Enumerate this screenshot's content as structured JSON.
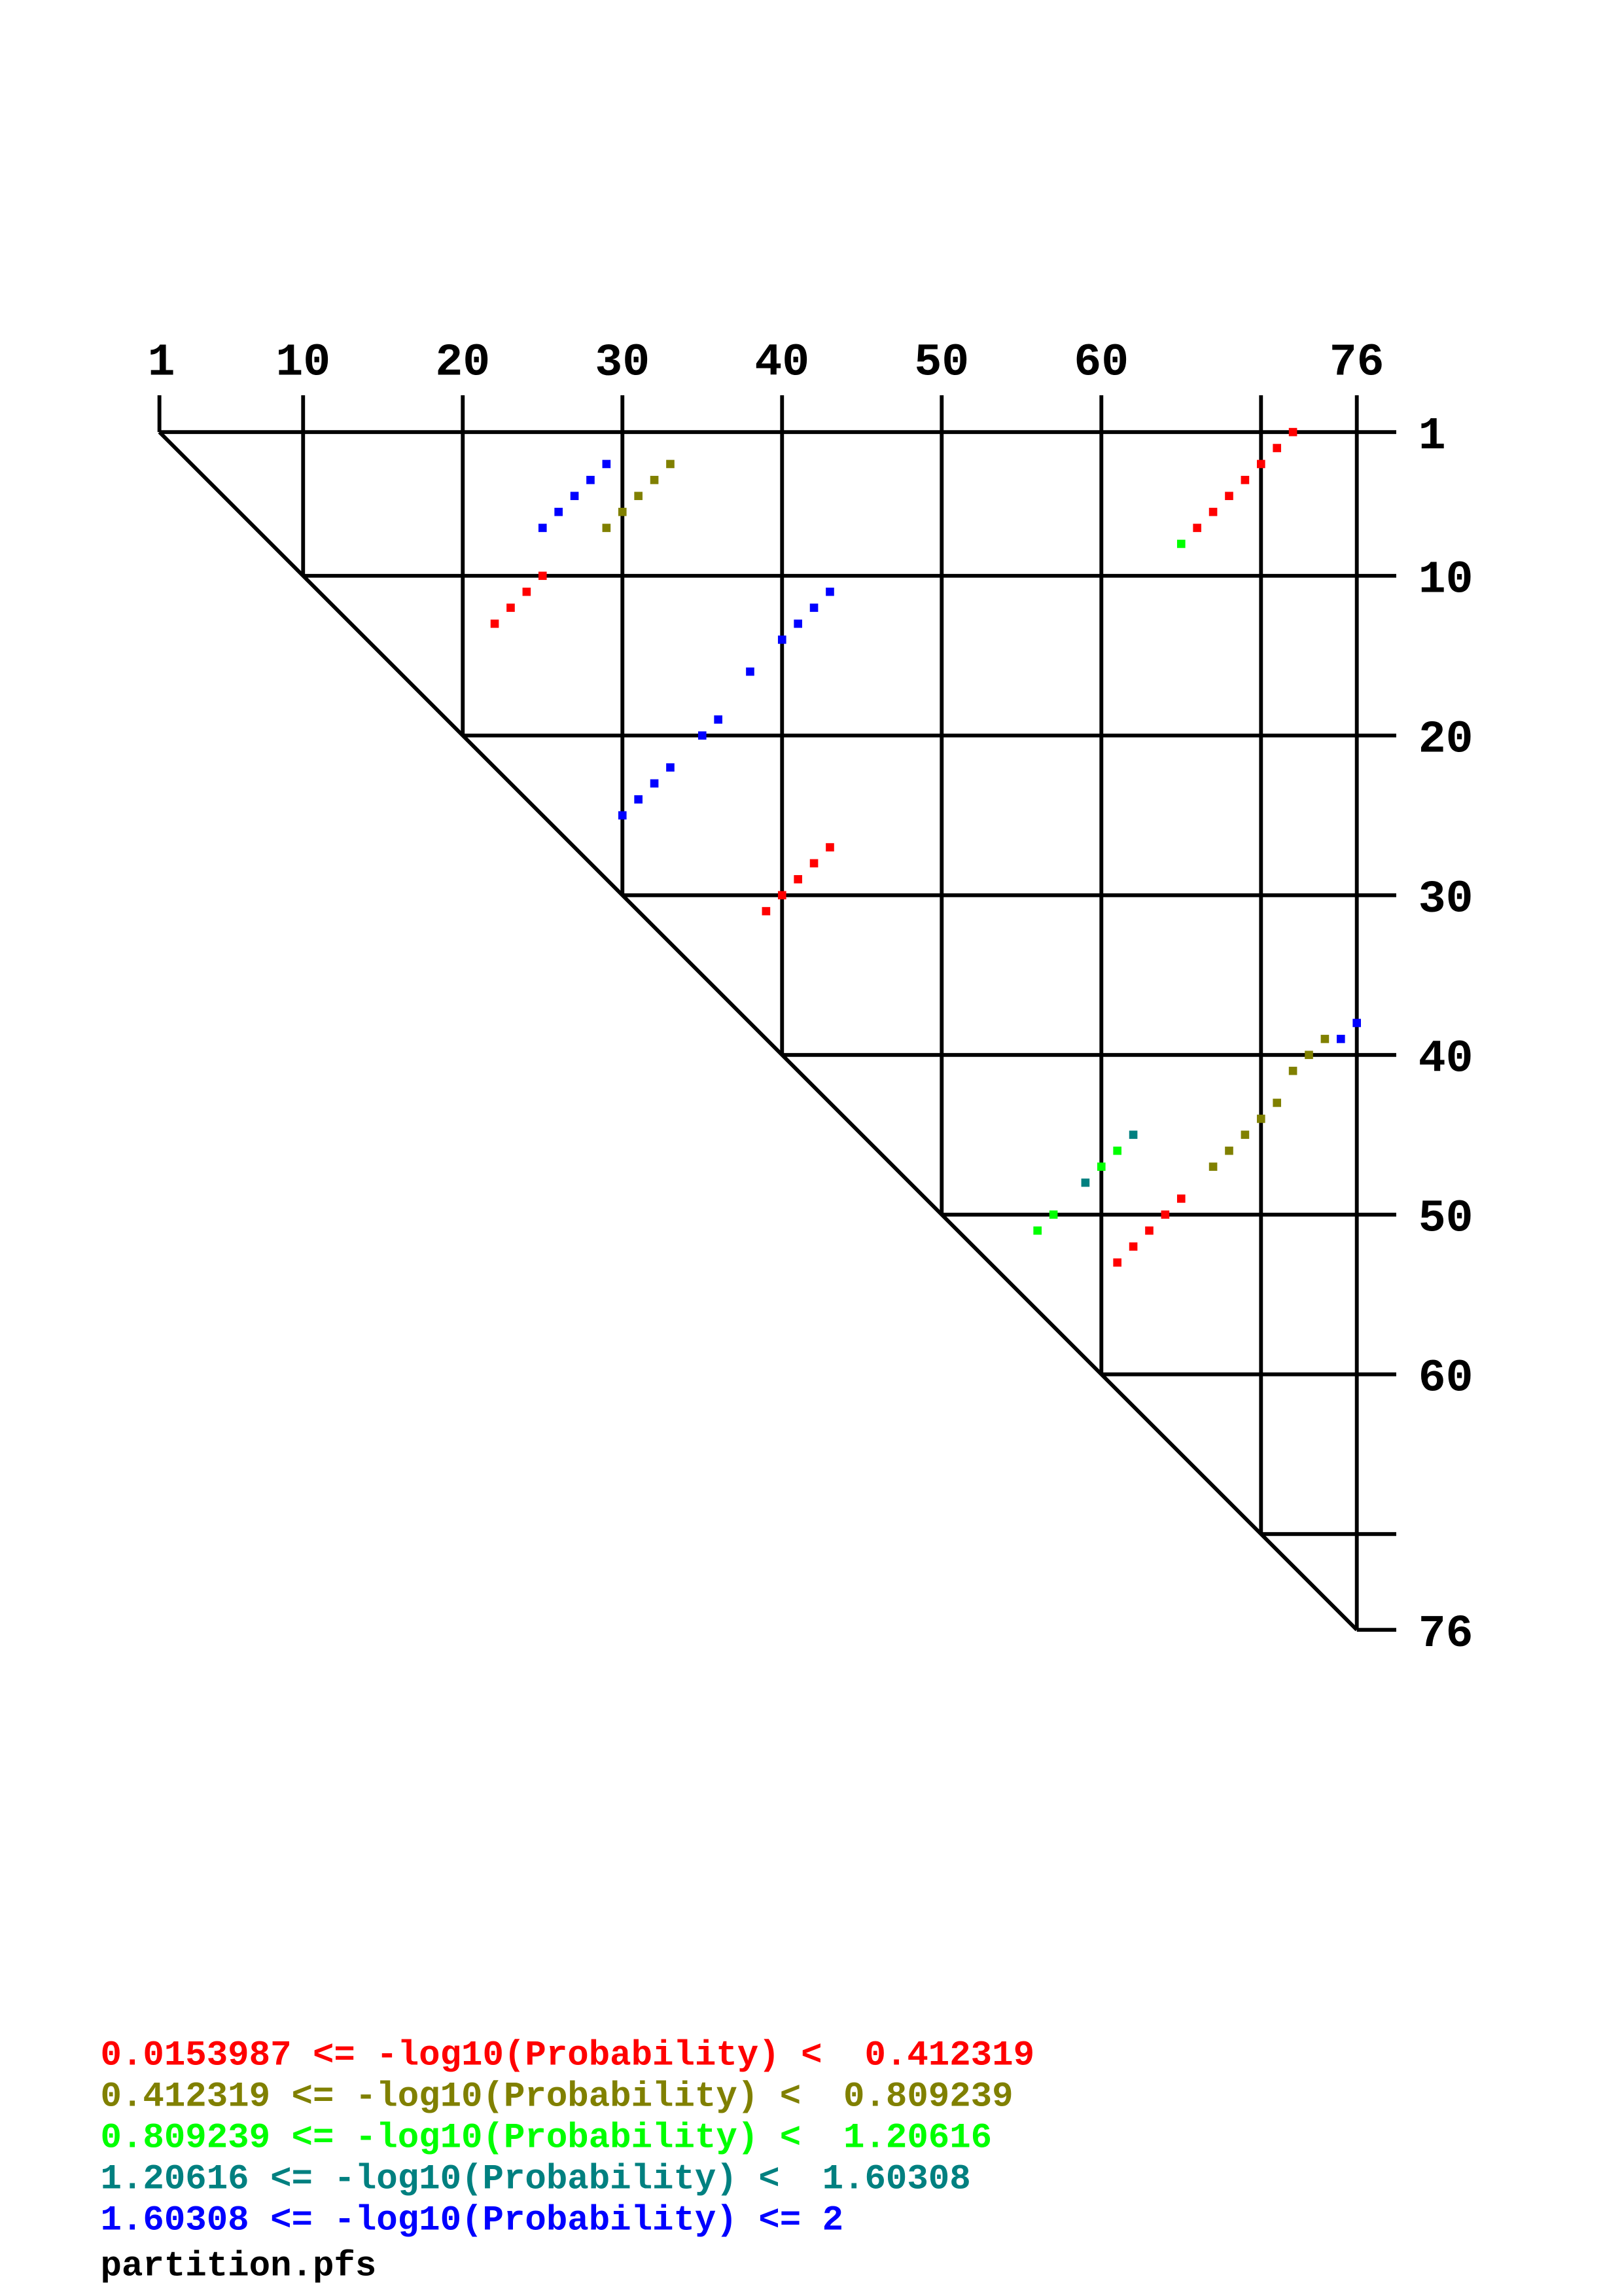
{
  "chart_data": {
    "type": "heatmap",
    "description_kind": "triangular base-pair probability dot plot",
    "sequence_range": [
      1,
      76
    ],
    "top_tick_labels": [
      "1",
      "10",
      "20",
      "30",
      "40",
      "50",
      "60",
      "76"
    ],
    "right_tick_labels": [
      "1",
      "10",
      "20",
      "30",
      "40",
      "50",
      "60",
      "76"
    ],
    "grid_positions": [
      1,
      10,
      20,
      30,
      40,
      50,
      60,
      70,
      76
    ],
    "bins": [
      {
        "label": "0.0153987 <= -log10(Probability) <  0.412319",
        "color": "#ff0000"
      },
      {
        "label": "0.412319 <= -log10(Probability) <  0.809239",
        "color": "#808000"
      },
      {
        "label": "0.809239 <= -log10(Probability) <  1.20616",
        "color": "#00ff00"
      },
      {
        "label": "1.20616 <= -log10(Probability) <  1.60308",
        "color": "#008080"
      },
      {
        "label": "1.60308 <= -log10(Probability) <= 2",
        "color": "#0000ff"
      }
    ],
    "pairs_i_j_bin": [
      [
        1,
        72,
        0
      ],
      [
        2,
        71,
        0
      ],
      [
        3,
        70,
        0
      ],
      [
        4,
        69,
        0
      ],
      [
        5,
        68,
        0
      ],
      [
        6,
        67,
        0
      ],
      [
        7,
        66,
        0
      ],
      [
        8,
        65,
        2
      ],
      [
        3,
        29,
        4
      ],
      [
        4,
        28,
        4
      ],
      [
        5,
        27,
        4
      ],
      [
        6,
        26,
        4
      ],
      [
        7,
        25,
        4
      ],
      [
        3,
        33,
        1
      ],
      [
        4,
        32,
        1
      ],
      [
        5,
        31,
        1
      ],
      [
        6,
        30,
        1
      ],
      [
        7,
        29,
        1
      ],
      [
        10,
        25,
        0
      ],
      [
        11,
        24,
        0
      ],
      [
        12,
        23,
        0
      ],
      [
        13,
        22,
        0
      ],
      [
        11,
        43,
        4
      ],
      [
        12,
        42,
        4
      ],
      [
        13,
        41,
        4
      ],
      [
        14,
        40,
        4
      ],
      [
        16,
        38,
        4
      ],
      [
        19,
        36,
        4
      ],
      [
        20,
        35,
        4
      ],
      [
        22,
        33,
        4
      ],
      [
        23,
        32,
        4
      ],
      [
        24,
        31,
        4
      ],
      [
        25,
        30,
        4
      ],
      [
        27,
        43,
        0
      ],
      [
        28,
        42,
        0
      ],
      [
        29,
        41,
        0
      ],
      [
        30,
        40,
        0
      ],
      [
        31,
        39,
        0
      ],
      [
        38,
        76,
        4
      ],
      [
        39,
        75,
        4
      ],
      [
        39,
        74,
        1
      ],
      [
        40,
        73,
        1
      ],
      [
        41,
        72,
        1
      ],
      [
        43,
        71,
        1
      ],
      [
        44,
        70,
        1
      ],
      [
        45,
        69,
        1
      ],
      [
        46,
        68,
        1
      ],
      [
        47,
        67,
        1
      ],
      [
        45,
        62,
        3
      ],
      [
        48,
        59,
        3
      ],
      [
        46,
        61,
        2
      ],
      [
        47,
        60,
        2
      ],
      [
        50,
        57,
        2
      ],
      [
        51,
        56,
        2
      ],
      [
        49,
        65,
        0
      ],
      [
        50,
        64,
        0
      ],
      [
        51,
        63,
        0
      ],
      [
        52,
        62,
        0
      ],
      [
        53,
        61,
        0
      ]
    ]
  },
  "footer": {
    "filename": "partition.pfs"
  }
}
